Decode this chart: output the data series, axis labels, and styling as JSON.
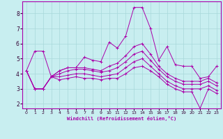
{
  "xlabel": "Windchill (Refroidissement éolien,°C)",
  "background_color": "#c8eef0",
  "grid_color": "#b0dde0",
  "line_color": "#aa00aa",
  "xlim": [
    -0.5,
    23.5
  ],
  "ylim": [
    1.7,
    8.8
  ],
  "yticks": [
    2,
    3,
    4,
    5,
    6,
    7,
    8
  ],
  "xticks": [
    0,
    1,
    2,
    3,
    4,
    5,
    6,
    7,
    8,
    9,
    10,
    11,
    12,
    13,
    14,
    15,
    16,
    17,
    18,
    19,
    20,
    21,
    22,
    23
  ],
  "series": [
    [
      4.2,
      5.5,
      5.5,
      3.8,
      4.2,
      4.4,
      4.4,
      5.1,
      4.9,
      4.8,
      6.1,
      5.7,
      6.5,
      8.4,
      8.4,
      7.0,
      4.9,
      5.8,
      4.6,
      4.5,
      4.5,
      3.7,
      3.8,
      4.5
    ],
    [
      4.2,
      3.0,
      3.0,
      3.8,
      4.2,
      4.4,
      4.4,
      4.4,
      4.3,
      4.2,
      4.5,
      4.7,
      5.2,
      5.8,
      6.0,
      5.3,
      4.5,
      4.0,
      3.7,
      3.5,
      3.5,
      3.5,
      3.7,
      3.4
    ],
    [
      4.2,
      3.0,
      3.0,
      3.8,
      4.0,
      4.2,
      4.3,
      4.3,
      4.2,
      4.1,
      4.2,
      4.4,
      4.8,
      5.3,
      5.5,
      4.9,
      4.3,
      3.8,
      3.5,
      3.3,
      3.3,
      3.3,
      3.5,
      3.2
    ],
    [
      4.2,
      3.0,
      3.0,
      3.8,
      3.8,
      3.9,
      4.0,
      4.0,
      3.9,
      3.8,
      3.9,
      4.0,
      4.4,
      4.8,
      5.0,
      4.5,
      4.0,
      3.5,
      3.2,
      3.0,
      3.0,
      3.0,
      3.2,
      2.9
    ],
    [
      4.2,
      3.0,
      3.0,
      3.8,
      3.6,
      3.7,
      3.8,
      3.7,
      3.7,
      3.6,
      3.7,
      3.7,
      4.0,
      4.4,
      4.5,
      4.2,
      3.8,
      3.3,
      3.0,
      2.8,
      2.8,
      1.7,
      3.0,
      2.7
    ]
  ]
}
